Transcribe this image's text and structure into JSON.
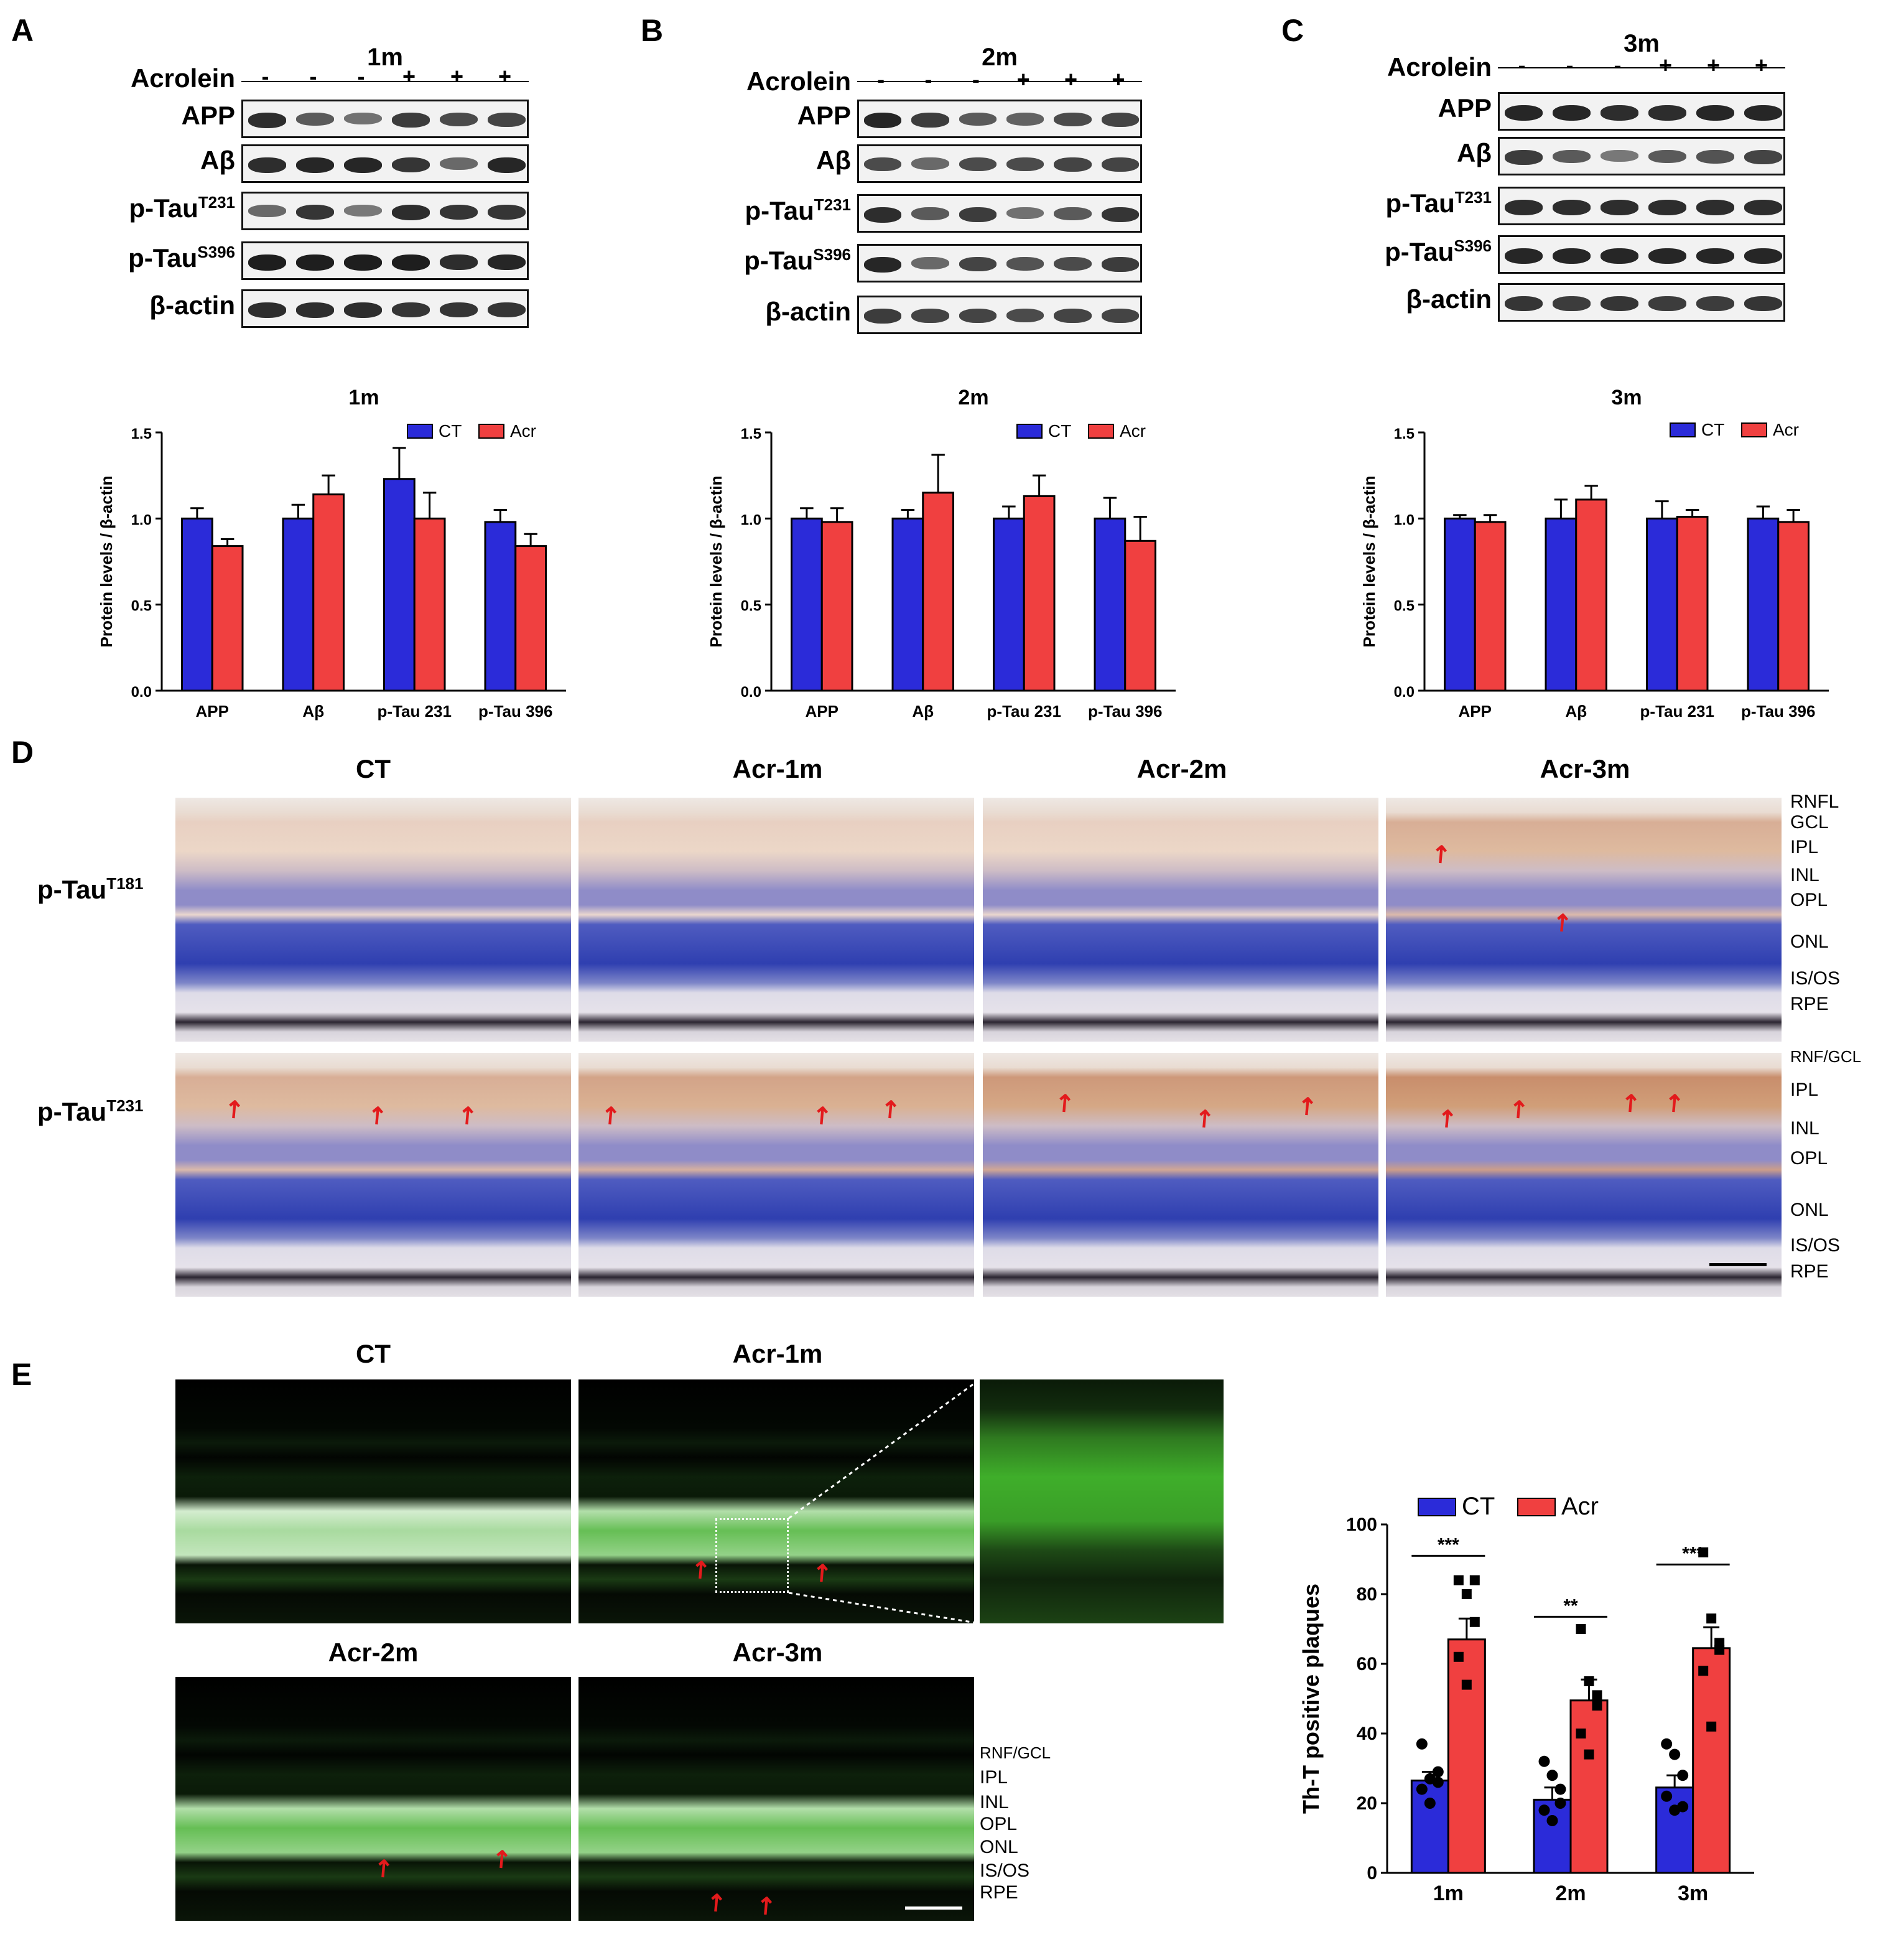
{
  "panels": {
    "A": "A",
    "B": "B",
    "C": "C",
    "D": "D",
    "E": "E"
  },
  "blots": [
    {
      "title": "1m",
      "acrolein_label": "Acrolein",
      "signs": [
        "-",
        "-",
        "-",
        "+",
        "+",
        "+"
      ],
      "rows": [
        {
          "main": "APP",
          "sup": ""
        },
        {
          "main": "Aβ",
          "sup": ""
        },
        {
          "main": "p-Tau",
          "sup": "T231"
        },
        {
          "main": "p-Tau",
          "sup": "S396"
        },
        {
          "main": "β-actin",
          "sup": ""
        }
      ]
    },
    {
      "title": "2m",
      "acrolein_label": "Acrolein",
      "signs": [
        "-",
        "-",
        "-",
        "+",
        "+",
        "+"
      ],
      "rows": [
        {
          "main": "APP",
          "sup": ""
        },
        {
          "main": "Aβ",
          "sup": ""
        },
        {
          "main": "p-Tau",
          "sup": "T231"
        },
        {
          "main": "p-Tau",
          "sup": "S396"
        },
        {
          "main": "β-actin",
          "sup": ""
        }
      ]
    },
    {
      "title": "3m",
      "acrolein_label": "Acrolein",
      "signs": [
        "-",
        "-",
        "-",
        "+",
        "+",
        "+"
      ],
      "rows": [
        {
          "main": "APP",
          "sup": ""
        },
        {
          "main": "Aβ",
          "sup": ""
        },
        {
          "main": "p-Tau",
          "sup": "T231"
        },
        {
          "main": "p-Tau",
          "sup": "S396"
        },
        {
          "main": "β-actin",
          "sup": ""
        }
      ]
    }
  ],
  "colors": {
    "ct": "#2b2bd9",
    "acr": "#f04040",
    "ihc_bg": "#e8d8cc",
    "green": "#3fae2a"
  },
  "chart_data": [
    {
      "type": "bar",
      "title": "1m",
      "ylabel": "Protein levels / β-actin",
      "ylim": [
        0,
        1.5
      ],
      "yticks": [
        "0.0",
        "0.5",
        "1.0",
        "1.5"
      ],
      "categories": [
        "APP",
        "Aβ",
        "p-Tau 231",
        "p-Tau 396"
      ],
      "series": [
        {
          "name": "CT",
          "values": [
            1.0,
            1.0,
            1.23,
            0.98
          ],
          "errors": [
            0.06,
            0.08,
            0.18,
            0.07
          ]
        },
        {
          "name": "Acr",
          "values": [
            0.84,
            1.14,
            1.0,
            0.84
          ],
          "errors": [
            0.04,
            0.11,
            0.15,
            0.07
          ]
        }
      ],
      "legend": "top-right"
    },
    {
      "type": "bar",
      "title": "2m",
      "ylabel": "Protein levels / β-actin",
      "ylim": [
        0,
        1.5
      ],
      "yticks": [
        "0.0",
        "0.5",
        "1.0",
        "1.5"
      ],
      "categories": [
        "APP",
        "Aβ",
        "p-Tau 231",
        "p-Tau 396"
      ],
      "series": [
        {
          "name": "CT",
          "values": [
            1.0,
            1.0,
            1.0,
            1.0
          ],
          "errors": [
            0.06,
            0.05,
            0.07,
            0.12
          ]
        },
        {
          "name": "Acr",
          "values": [
            0.98,
            1.15,
            1.13,
            0.87
          ],
          "errors": [
            0.08,
            0.22,
            0.12,
            0.14
          ]
        }
      ],
      "legend": "top-right"
    },
    {
      "type": "bar",
      "title": "3m",
      "ylabel": "Protein levels / β-actin",
      "ylim": [
        0,
        1.5
      ],
      "yticks": [
        "0.0",
        "0.5",
        "1.0",
        "1.5"
      ],
      "categories": [
        "APP",
        "Aβ",
        "p-Tau 231",
        "p-Tau 396"
      ],
      "series": [
        {
          "name": "CT",
          "values": [
            1.0,
            1.0,
            1.0,
            1.0
          ],
          "errors": [
            0.02,
            0.11,
            0.1,
            0.07
          ]
        },
        {
          "name": "Acr",
          "values": [
            0.98,
            1.11,
            1.01,
            0.98
          ],
          "errors": [
            0.04,
            0.08,
            0.04,
            0.07
          ]
        }
      ],
      "legend": "top-right"
    },
    {
      "type": "bar",
      "title": "",
      "ylabel": "Th-T positive plaques",
      "ylim": [
        0,
        100
      ],
      "yticks": [
        "0",
        "20",
        "40",
        "60",
        "80",
        "100"
      ],
      "categories": [
        "1m",
        "2m",
        "3m"
      ],
      "series": [
        {
          "name": "CT",
          "values": [
            26.5,
            21,
            24.5
          ],
          "errors": [
            2.5,
            3.5,
            3.5
          ],
          "points": [
            [
              37,
              27,
              26,
              24,
              20,
              29
            ],
            [
              32,
              28,
              24,
              18,
              15,
              20
            ],
            [
              37,
              34,
              28,
              22,
              18,
              19
            ]
          ]
        },
        {
          "name": "Acr",
          "values": [
            67,
            49.5,
            64.5
          ],
          "errors": [
            6,
            6,
            6
          ],
          "points": [
            [
              84,
              80,
              72,
              62,
              54,
              84
            ],
            [
              70,
              55,
              51,
              40,
              34,
              48
            ],
            [
              92,
              73,
              64,
              58,
              42,
              66
            ]
          ]
        }
      ],
      "significance": [
        "***",
        "**",
        "***"
      ],
      "legend": "top"
    }
  ],
  "ihc": {
    "columns": [
      "CT",
      "Acr-1m",
      "Acr-2m",
      "Acr-3m"
    ],
    "rows": [
      {
        "main": "p-Tau",
        "sup": "T181"
      },
      {
        "main": "p-Tau",
        "sup": "T231"
      }
    ],
    "layers_row1": [
      "RNFL",
      "GCL",
      "IPL",
      "INL",
      "OPL",
      "ONL",
      "IS/OS",
      "RPE"
    ],
    "layers_row2": [
      "RNF/GCL",
      "IPL",
      "INL",
      "OPL",
      "ONL",
      "IS/OS",
      "RPE"
    ]
  },
  "fluo": {
    "titles": [
      "CT",
      "Acr-1m",
      "Acr-2m",
      "Acr-3m"
    ],
    "layers": [
      "RNF/GCL",
      "IPL",
      "INL",
      "OPL",
      "ONL",
      "IS/OS",
      "RPE"
    ]
  }
}
